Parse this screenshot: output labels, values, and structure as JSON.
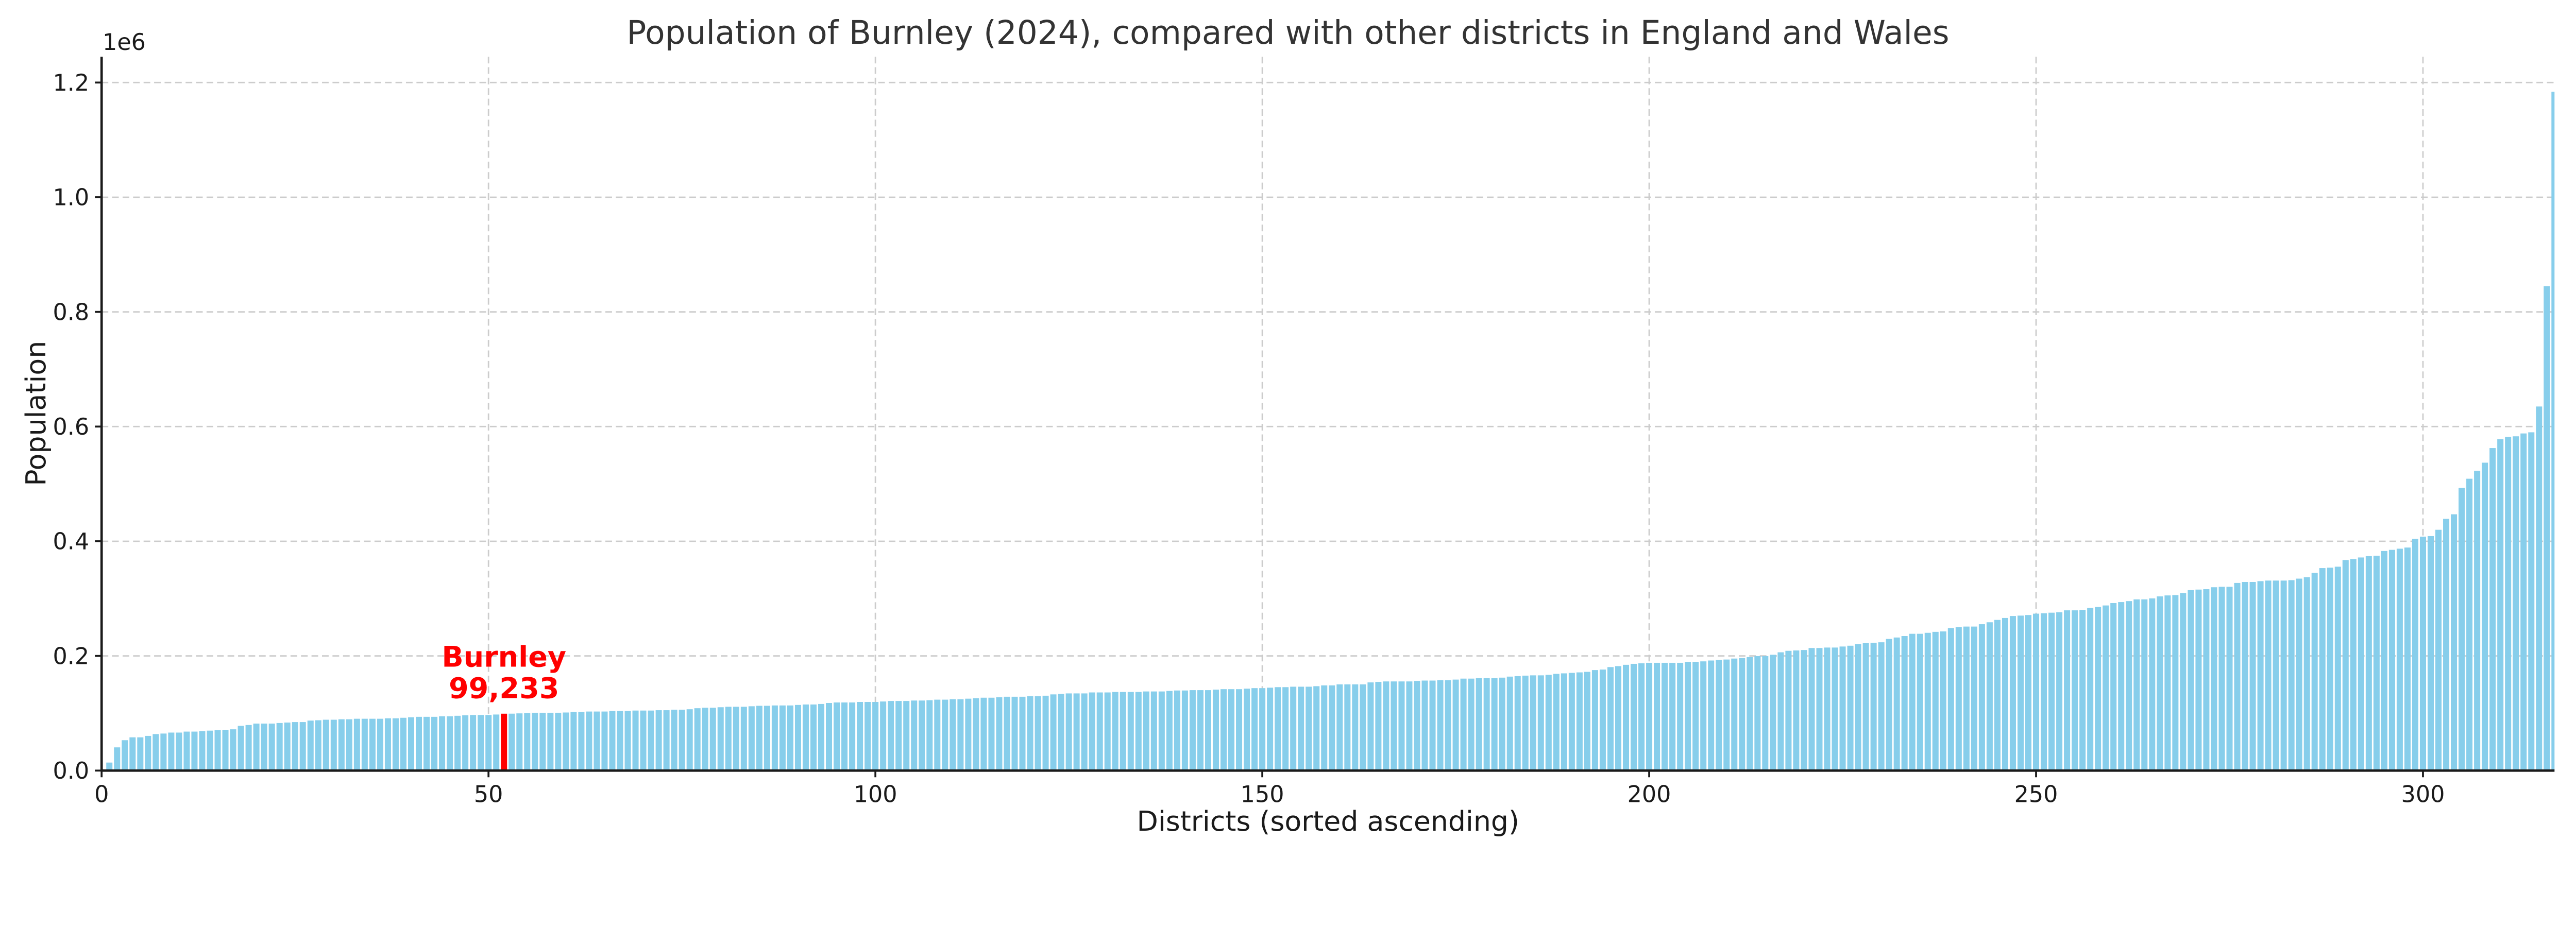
{
  "chart_data": {
    "type": "bar",
    "title": "Population of Burnley (2024), compared with other districts in England and Wales",
    "xlabel": "Districts (sorted ascending)",
    "ylabel": "Population",
    "y_offset_label": "1e6",
    "xlim": [
      0,
      317
    ],
    "ylim": [
      0,
      1245000
    ],
    "x_ticks": [
      0,
      50,
      100,
      150,
      200,
      250,
      300
    ],
    "x_tick_labels": [
      "0",
      "50",
      "100",
      "150",
      "200",
      "250",
      "300"
    ],
    "y_ticks": [
      0,
      200000,
      400000,
      600000,
      800000,
      1000000,
      1200000
    ],
    "y_tick_labels": [
      "0.0",
      "0.2",
      "0.4",
      "0.6",
      "0.8",
      "1.0",
      "1.2"
    ],
    "grid": true,
    "bar_color": "#87CEEB",
    "highlight_color": "#FF0000",
    "highlight": {
      "index": 52,
      "name": "Burnley",
      "value": 99233,
      "label_name": "Burnley",
      "label_value": "99,233"
    },
    "values": [
      2200,
      14000,
      40500,
      53000,
      58000,
      58000,
      60500,
      63700,
      64600,
      66300,
      66300,
      68000,
      68000,
      68900,
      69700,
      70600,
      71200,
      72000,
      78000,
      79500,
      82000,
      82000,
      82000,
      83000,
      83800,
      84600,
      84600,
      87200,
      87800,
      88700,
      88700,
      89500,
      89500,
      90400,
      90400,
      90400,
      90400,
      91200,
      91200,
      92100,
      93000,
      93800,
      93800,
      93800,
      94700,
      94700,
      95600,
      96400,
      97000,
      97000,
      97000,
      97800,
      99233,
      99300,
      99800,
      100500,
      100900,
      100900,
      100900,
      100900,
      101300,
      102200,
      102200,
      103000,
      103000,
      103000,
      103900,
      103900,
      103900,
      104700,
      104700,
      104700,
      105300,
      105300,
      106200,
      106200,
      107000,
      108800,
      109600,
      109600,
      110500,
      111300,
      111300,
      111300,
      112200,
      113000,
      113000,
      113600,
      113600,
      113600,
      114500,
      115300,
      115300,
      116200,
      117900,
      118800,
      118800,
      118800,
      119700,
      119700,
      119700,
      120500,
      121400,
      121400,
      121400,
      122200,
      122200,
      122800,
      123700,
      123700,
      124500,
      124500,
      125400,
      126300,
      127100,
      127100,
      128000,
      128800,
      128800,
      128800,
      129700,
      129700,
      130600,
      132900,
      133700,
      134600,
      134600,
      134600,
      136300,
      136300,
      136300,
      137100,
      137100,
      137100,
      137100,
      138000,
      138000,
      138000,
      138900,
      139700,
      139700,
      140300,
      140300,
      140300,
      141200,
      142000,
      142000,
      142000,
      142900,
      143800,
      143800,
      144600,
      145500,
      145500,
      146300,
      146300,
      146300,
      147200,
      148600,
      148600,
      150400,
      150400,
      150400,
      150400,
      153800,
      154700,
      155500,
      155500,
      155500,
      155500,
      156400,
      157000,
      157000,
      157800,
      157800,
      158700,
      160400,
      160400,
      161200,
      161200,
      161200,
      162100,
      163900,
      164700,
      165600,
      166100,
      166100,
      167000,
      168700,
      169600,
      170400,
      171300,
      172200,
      175300,
      176200,
      180500,
      182200,
      184500,
      186200,
      187100,
      188000,
      188000,
      188000,
      188000,
      188000,
      189700,
      189700,
      190500,
      192000,
      192800,
      193700,
      195400,
      196300,
      198000,
      199700,
      199700,
      202000,
      206300,
      208900,
      209500,
      210300,
      213800,
      213800,
      214600,
      214600,
      216400,
      217800,
      220400,
      222100,
      222900,
      223800,
      229600,
      232100,
      234700,
      238600,
      238600,
      240300,
      242000,
      242700,
      248500,
      250200,
      251200,
      251200,
      255300,
      258700,
      262800,
      266200,
      269600,
      270300,
      271300,
      273700,
      274400,
      275400,
      276100,
      279500,
      279500,
      280200,
      283600,
      285300,
      288000,
      292200,
      293900,
      295600,
      298600,
      298600,
      300300,
      303800,
      305500,
      306100,
      309600,
      314700,
      315700,
      316400,
      319800,
      320500,
      320500,
      327300,
      329000,
      329000,
      330400,
      331400,
      331400,
      331400,
      332100,
      334800,
      337200,
      344700,
      353200,
      353900,
      355600,
      367200,
      368900,
      371700,
      374000,
      374700,
      383000,
      385000,
      387000,
      389000,
      404000,
      408000,
      409000,
      420000,
      439000,
      447000,
      493000,
      509000,
      523000,
      537000,
      562500,
      578000,
      582000,
      583000,
      588000,
      590000,
      635000,
      845000,
      1184000
    ]
  }
}
